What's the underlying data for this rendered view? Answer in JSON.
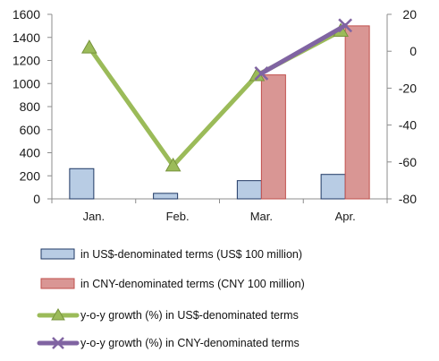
{
  "chart_data": {
    "type": "bar+line",
    "categories": [
      "Jan.",
      "Feb.",
      "Mar.",
      "Apr."
    ],
    "y_left": {
      "min": 0,
      "max": 1600,
      "ticks": [
        0,
        200,
        400,
        600,
        800,
        1000,
        1200,
        1400,
        1600
      ]
    },
    "y_right": {
      "min": -80,
      "max": 20,
      "ticks": [
        -80,
        -60,
        -40,
        -20,
        0,
        20
      ]
    },
    "bar_series": [
      {
        "name": "in US$-denominated terms (US$ 100 million)",
        "values": [
          262,
          48,
          158,
          212
        ],
        "color": "#b8cce4",
        "stroke": "#1f3864"
      },
      {
        "name": "in CNY-denominated terms (CNY 100 million)",
        "values": [
          null,
          null,
          1075,
          1500
        ],
        "color": "#d99694",
        "stroke": "#c0504d"
      }
    ],
    "line_series": [
      {
        "name": "y-o-y growth (%) in US$-denominated terms",
        "values": [
          2,
          -62,
          -13,
          11
        ],
        "color": "#9bbb59",
        "marker": "triangle"
      },
      {
        "name": "y-o-y growth (%) in CNY-denominated terms",
        "values": [
          null,
          null,
          -12,
          14
        ],
        "color": "#8064a2",
        "marker": "x"
      }
    ],
    "grid": false,
    "legend_position": "bottom"
  }
}
